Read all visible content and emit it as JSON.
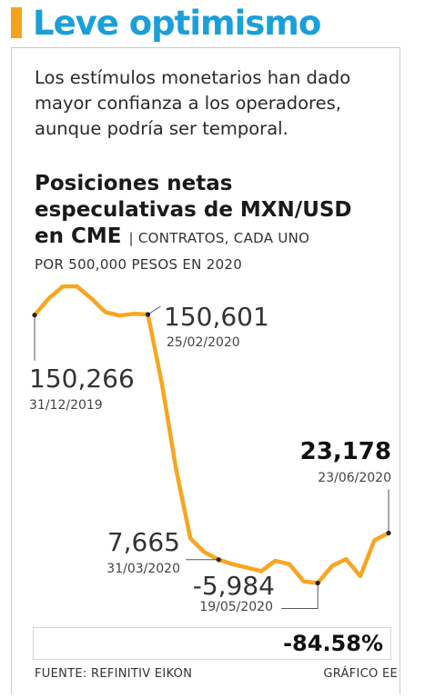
{
  "theme": {
    "accent": "#f7a21b",
    "headline_color": "#1a9fd9",
    "line_color": "#f7a620",
    "leader_color": "#555555",
    "dot_color": "#222222"
  },
  "header": {
    "title": "Leve optimismo"
  },
  "intro": {
    "lines": [
      "Los estímulos monetarios han dado",
      "mayor confianza a los operadores,",
      "aunque podría ser temporal."
    ]
  },
  "subtitle": {
    "line1": "Posiciones netas",
    "line2": "especulativas de MXN/USD",
    "line3": "en CME",
    "unit_part1": "| CONTRATOS, CADA UNO",
    "unit_part2": "POR 500,000 PESOS EN 2020"
  },
  "chart_data": {
    "type": "line",
    "title": "Posiciones netas especulativas de MXN/USD en CME",
    "unit": "CONTRATOS, CADA UNO POR 500,000 PESOS EN 2020",
    "ylim": [
      -20000,
      175000
    ],
    "grid": false,
    "x": [
      "2019-12-31",
      "2020-01-07",
      "2020-01-14",
      "2020-01-21",
      "2020-01-28",
      "2020-02-04",
      "2020-02-11",
      "2020-02-18",
      "2020-02-25",
      "2020-03-03",
      "2020-03-10",
      "2020-03-17",
      "2020-03-24",
      "2020-03-31",
      "2020-04-07",
      "2020-04-14",
      "2020-04-21",
      "2020-04-28",
      "2020-05-05",
      "2020-05-12",
      "2020-05-19",
      "2020-05-26",
      "2020-06-02",
      "2020-06-09",
      "2020-06-16",
      "2020-06-23"
    ],
    "series": [
      {
        "values": [
          150266,
          160000,
          167000,
          167000,
          160000,
          152000,
          150000,
          151000,
          150601,
          110000,
          60000,
          20000,
          12000,
          7665,
          5000,
          3000,
          1000,
          7000,
          5000,
          -5000,
          -5984,
          4000,
          8000,
          -2000,
          19000,
          23178
        ]
      }
    ],
    "annotations": [
      {
        "x": "2019-12-31",
        "value": "150,266",
        "date": "31/12/2019",
        "bold": false
      },
      {
        "x": "2020-02-25",
        "value": "150,601",
        "date": "25/02/2020",
        "bold": false
      },
      {
        "x": "2020-03-31",
        "value": "7,665",
        "date": "31/03/2020",
        "bold": false
      },
      {
        "x": "2020-05-19",
        "value": "-5,984",
        "date": "19/05/2020",
        "bold": false
      },
      {
        "x": "2020-06-23",
        "value": "23,178",
        "date": "23/06/2020",
        "bold": true
      }
    ]
  },
  "summary": {
    "change": "-84.58%"
  },
  "footer": {
    "source": "FUENTE: REFINITIV EIKON",
    "credit": "GRÁFICO EE"
  }
}
